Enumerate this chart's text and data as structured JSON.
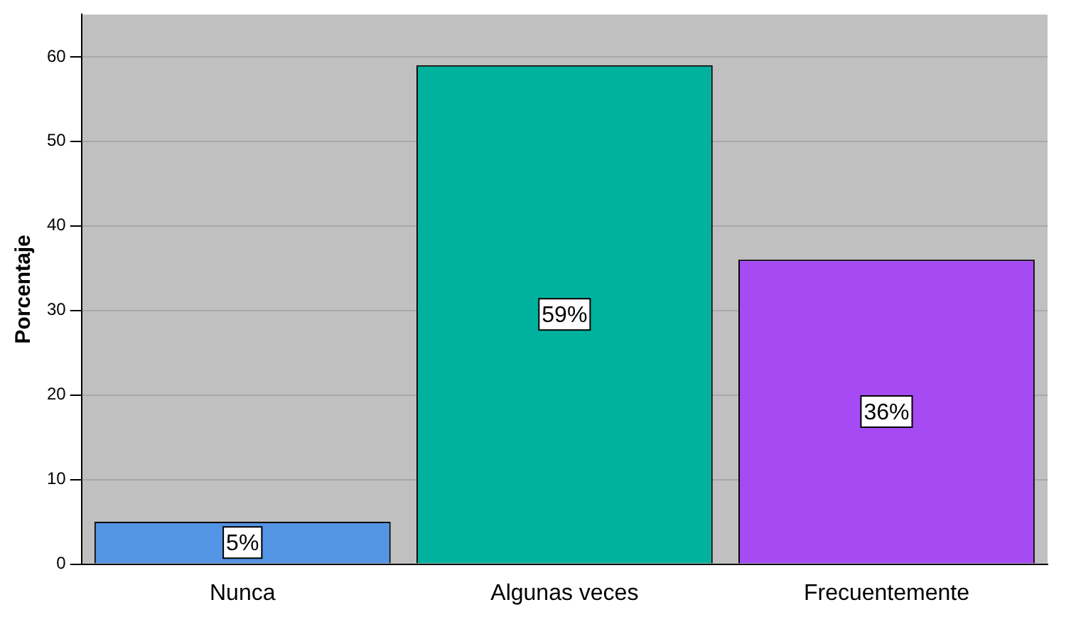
{
  "chart_data": {
    "type": "bar",
    "ylabel": "Porcentaje",
    "categories": [
      "Nunca",
      "Algunas veces",
      "Frecuentemente"
    ],
    "values": [
      5,
      59,
      36
    ],
    "colors": [
      "#5494e4",
      "#00b29e",
      "#a64bf4"
    ],
    "value_labels": [
      "5%",
      "59%",
      "36%"
    ],
    "ylim": [
      0,
      65
    ],
    "yticks": [
      0,
      10,
      20,
      30,
      40,
      50,
      60
    ],
    "grid": "y"
  }
}
